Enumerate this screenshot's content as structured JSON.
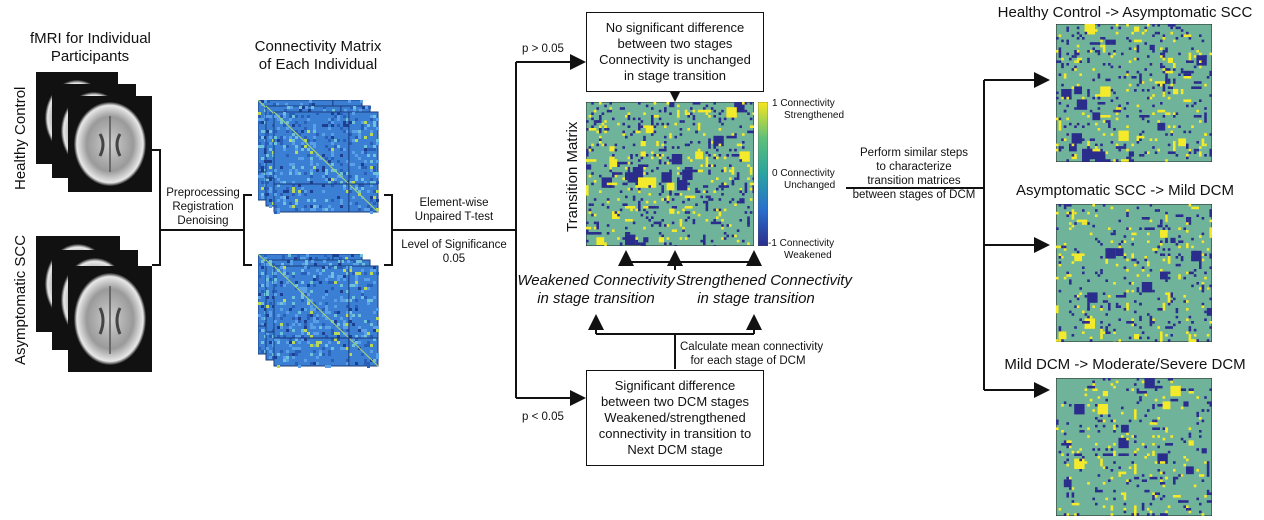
{
  "fmri": {
    "heading_line1": "fMRI for Individual",
    "heading_line2": "Participants",
    "group_healthy": "Healthy Control",
    "group_scc": "Asymptomatic SCC"
  },
  "preprocessing": {
    "line1": "Preprocessing",
    "line2": "Registration",
    "line3": "Denoising"
  },
  "connectivity": {
    "heading_line1": "Connectivity Matrix",
    "heading_line2": "of Each Individual"
  },
  "ttest": {
    "line1": "Element-wise",
    "line2": "Unpaired T-test",
    "line3": "Level of Significance",
    "line4": "0.05"
  },
  "pvalues": {
    "high": "p > 0.05",
    "low": "p < 0.05"
  },
  "no_sig_box": {
    "line1": "No significant difference",
    "line2": "between two stages",
    "line3": "Connectivity is unchanged",
    "line4": "in stage transition"
  },
  "transition": {
    "axis_label": "Transition Matrix",
    "cb_top_1": "1 Connectivity",
    "cb_top_2": "Strengthened",
    "cb_mid_1": "0 Connectivity",
    "cb_mid_2": "Unchanged",
    "cb_bot_1": "-1 Connectivity",
    "cb_bot_2": "Weakened",
    "weakened_1": "Weakened Connectivity",
    "weakened_2": "in stage transition",
    "strengthened_1": "Strengthened Connectivity",
    "strengthened_2": "in stage transition"
  },
  "mean_conn": {
    "line1": "Calculate mean connectivity",
    "line2": "for each stage of DCM"
  },
  "sig_box": {
    "line1": "Significant difference",
    "line2": "between two DCM stages",
    "line3": "Weakened/strengthened",
    "line4": "connectivity in transition to",
    "line5": "Next DCM stage"
  },
  "similar_steps": {
    "line1": "Perform similar steps",
    "line2": "to characterize",
    "line3": "transition matrices",
    "line4": "between stages of DCM"
  },
  "outputs": [
    {
      "title": "Healthy Control -> Asymptomatic SCC"
    },
    {
      "title": "Asymptomatic SCC -> Mild DCM"
    },
    {
      "title": "Mild DCM -> Moderate/Severe DCM"
    }
  ],
  "colors": {
    "background": "#6fb49a",
    "strengthened": "#f2ea2a",
    "weakened": "#2b2d8c",
    "connectivity_blue": "#3a7fd0"
  }
}
